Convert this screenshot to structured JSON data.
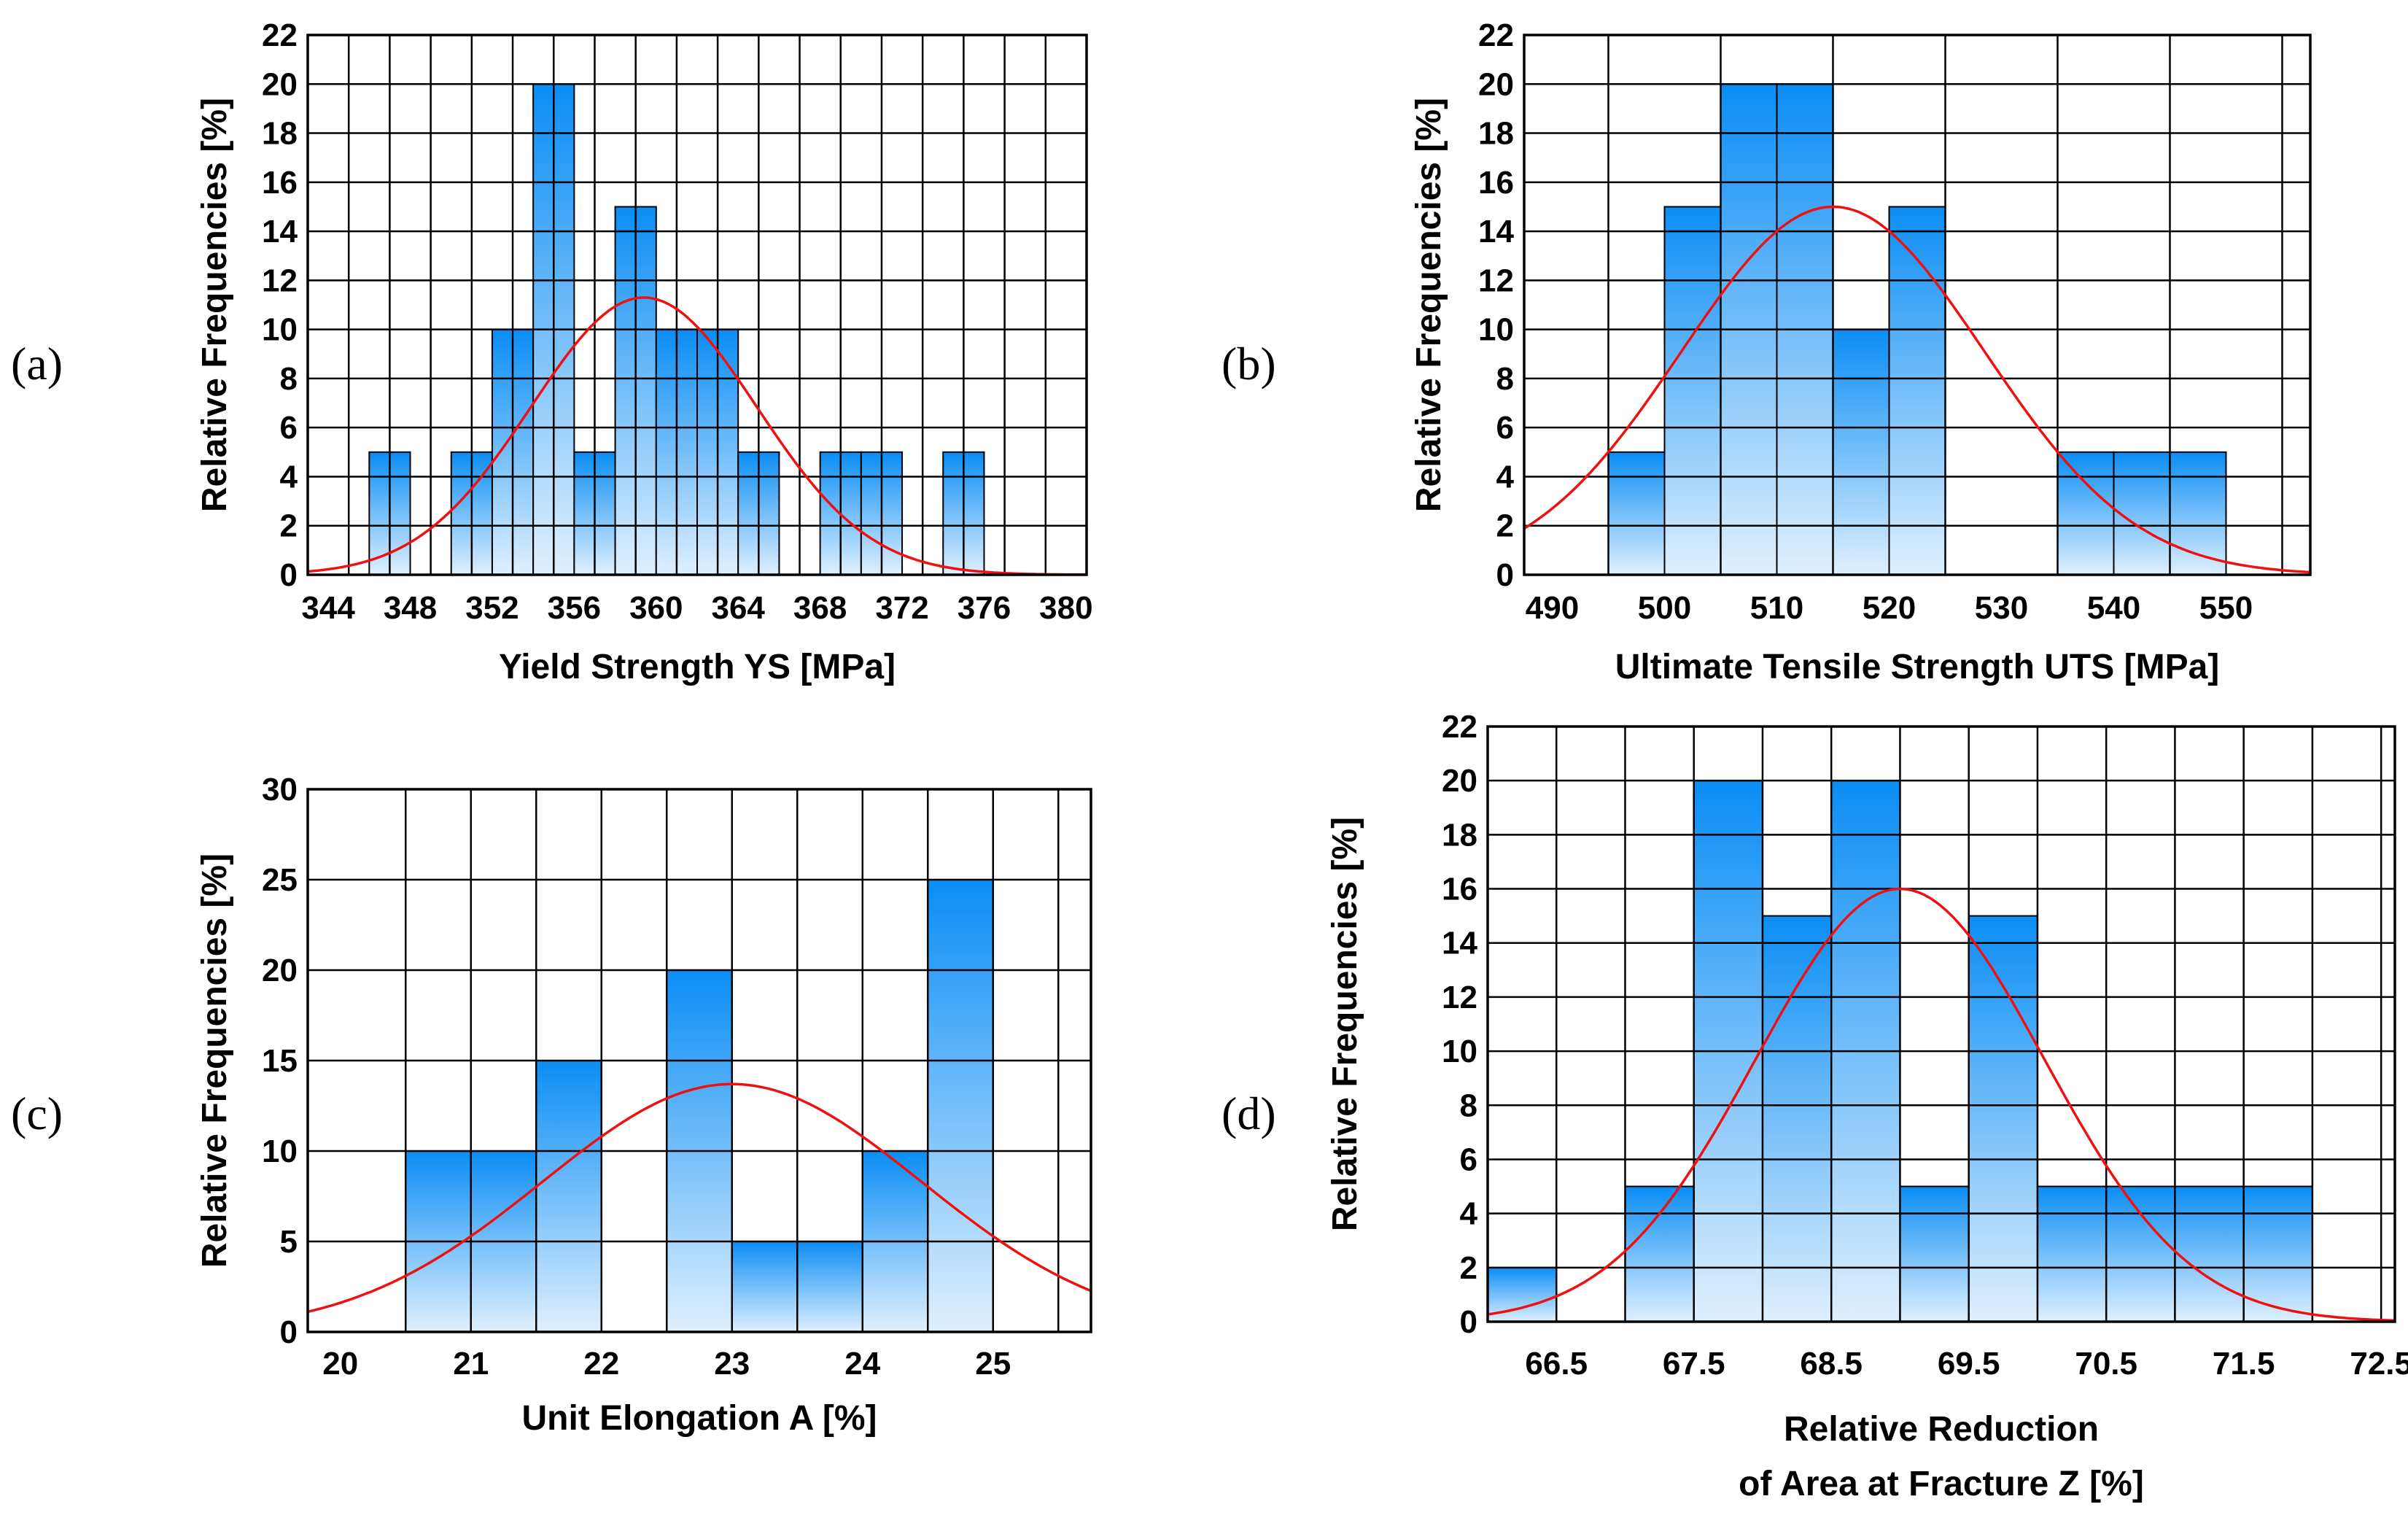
{
  "bar_gradient": {
    "top": "#0a8df5",
    "bottom": "#dff0fe"
  },
  "curve_color": "#ee1111",
  "chart_data": [
    {
      "id": "a",
      "type": "bar",
      "panel_label": "(a)",
      "xlabel": "Yield Strength YS [MPa]",
      "ylabel": "Relative Frequencies [%]",
      "xlim": [
        343,
        381
      ],
      "ylim": [
        0,
        22
      ],
      "xticks": [
        344,
        348,
        352,
        356,
        360,
        364,
        368,
        372,
        376,
        380
      ],
      "yticks": [
        0,
        2,
        4,
        6,
        8,
        10,
        12,
        14,
        16,
        18,
        20,
        22
      ],
      "xgrid": [
        345,
        347,
        349,
        351,
        353,
        355,
        357,
        359,
        361,
        363,
        365,
        367,
        369,
        371,
        373,
        375,
        377,
        379
      ],
      "ygrid": [
        2,
        4,
        6,
        8,
        10,
        12,
        14,
        16,
        18,
        20
      ],
      "bin_width": 2,
      "bins": [
        {
          "center": 347,
          "value": 5
        },
        {
          "center": 349,
          "value": 0
        },
        {
          "center": 351,
          "value": 5
        },
        {
          "center": 353,
          "value": 10
        },
        {
          "center": 355,
          "value": 20
        },
        {
          "center": 357,
          "value": 5
        },
        {
          "center": 359,
          "value": 15
        },
        {
          "center": 361,
          "value": 10
        },
        {
          "center": 363,
          "value": 10
        },
        {
          "center": 365,
          "value": 5
        },
        {
          "center": 367,
          "value": 0
        },
        {
          "center": 369,
          "value": 5
        },
        {
          "center": 371,
          "value": 5
        },
        {
          "center": 373,
          "value": 0
        },
        {
          "center": 375,
          "value": 5
        }
      ],
      "normal_fit": {
        "mean": 359.4,
        "peak": 11.3,
        "sd": 5.5
      }
    },
    {
      "id": "b",
      "type": "bar",
      "panel_label": "(b)",
      "xlabel": "Ultimate Tensile Strength UTS [MPa]",
      "ylabel": "Relative Frequencies [%]",
      "xlim": [
        487.5,
        557.5
      ],
      "ylim": [
        0,
        22
      ],
      "xticks": [
        490,
        500,
        510,
        520,
        530,
        540,
        550
      ],
      "yticks": [
        0,
        2,
        4,
        6,
        8,
        10,
        12,
        14,
        16,
        18,
        20,
        22
      ],
      "xgrid": [
        495,
        505,
        515,
        525,
        535,
        545,
        555
      ],
      "ygrid": [
        2,
        4,
        6,
        8,
        10,
        12,
        14,
        16,
        18,
        20
      ],
      "bin_width": 5,
      "bins": [
        {
          "center": 497.5,
          "value": 5
        },
        {
          "center": 502.5,
          "value": 15
        },
        {
          "center": 507.5,
          "value": 20
        },
        {
          "center": 512.5,
          "value": 20
        },
        {
          "center": 517.5,
          "value": 10
        },
        {
          "center": 522.5,
          "value": 15
        },
        {
          "center": 527.5,
          "value": 0
        },
        {
          "center": 532.5,
          "value": 0
        },
        {
          "center": 537.5,
          "value": 5
        },
        {
          "center": 542.5,
          "value": 5
        },
        {
          "center": 547.5,
          "value": 5
        }
      ],
      "normal_fit": {
        "mean": 515,
        "peak": 15.0,
        "sd": 13.5
      }
    },
    {
      "id": "c",
      "type": "bar",
      "panel_label": "(c)",
      "xlabel": "Unit Elongation A [%]",
      "ylabel": "Relative Frequencies [%]",
      "xlim": [
        19.75,
        25.75
      ],
      "ylim": [
        0,
        30
      ],
      "xticks": [
        20,
        21,
        22,
        23,
        24,
        25
      ],
      "yticks": [
        0,
        5,
        10,
        15,
        20,
        25,
        30
      ],
      "xgrid": [
        20.5,
        21,
        21.5,
        22,
        22.5,
        23,
        23.5,
        24,
        24.5,
        25,
        25.5
      ],
      "ygrid": [
        5,
        10,
        15,
        20,
        25
      ],
      "bin_width": 0.5,
      "bins": [
        {
          "center": 20.75,
          "value": 10
        },
        {
          "center": 21.25,
          "value": 10
        },
        {
          "center": 21.75,
          "value": 15
        },
        {
          "center": 22.25,
          "value": 0
        },
        {
          "center": 22.75,
          "value": 20
        },
        {
          "center": 23.25,
          "value": 5
        },
        {
          "center": 23.75,
          "value": 5
        },
        {
          "center": 24.25,
          "value": 10
        },
        {
          "center": 24.75,
          "value": 25
        }
      ],
      "normal_fit": {
        "mean": 23.0,
        "peak": 13.7,
        "sd": 1.45
      }
    },
    {
      "id": "d",
      "type": "bar",
      "panel_label": "(d)",
      "xlabel": [
        "Relative Reduction",
        "of Area at Fracture Z [%]"
      ],
      "ylabel": "Relative Frequencies [%]",
      "xlim": [
        66.0,
        72.6
      ],
      "ylim": [
        0,
        22
      ],
      "xticks": [
        "66.5",
        "67.5",
        "68.5",
        "69.5",
        "70.5",
        "71.5",
        "72.5"
      ],
      "yticks": [
        0,
        2,
        4,
        6,
        8,
        10,
        12,
        14,
        16,
        18,
        20,
        22
      ],
      "xgrid": [
        66.5,
        67,
        67.5,
        68,
        68.5,
        69,
        69.5,
        70,
        70.5,
        71,
        71.5,
        72,
        72.5
      ],
      "ygrid": [
        2,
        4,
        6,
        8,
        10,
        12,
        14,
        16,
        18,
        20
      ],
      "bin_width": 0.5,
      "bins": [
        {
          "center": 66.25,
          "value": 2
        },
        {
          "center": 66.75,
          "value": 0
        },
        {
          "center": 67.25,
          "value": 5
        },
        {
          "center": 67.75,
          "value": 20
        },
        {
          "center": 68.25,
          "value": 15
        },
        {
          "center": 68.75,
          "value": 20
        },
        {
          "center": 69.25,
          "value": 5
        },
        {
          "center": 69.75,
          "value": 15
        },
        {
          "center": 70.25,
          "value": 5
        },
        {
          "center": 70.75,
          "value": 5
        },
        {
          "center": 71.25,
          "value": 5
        },
        {
          "center": 71.75,
          "value": 5
        }
      ],
      "normal_fit": {
        "mean": 69.0,
        "peak": 16.0,
        "sd": 1.05
      }
    }
  ]
}
